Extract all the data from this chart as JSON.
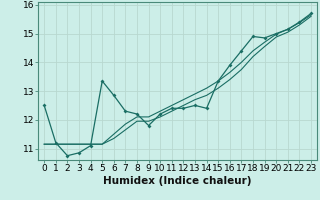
{
  "title": "",
  "xlabel": "Humidex (Indice chaleur)",
  "background_color": "#cceee8",
  "line_color": "#1a6e64",
  "grid_color": "#b8d8d0",
  "xlim": [
    -0.5,
    23.5
  ],
  "ylim": [
    10.6,
    16.1
  ],
  "yticks": [
    11,
    12,
    13,
    14,
    15,
    16
  ],
  "xticks": [
    0,
    1,
    2,
    3,
    4,
    5,
    6,
    7,
    8,
    9,
    10,
    11,
    12,
    13,
    14,
    15,
    16,
    17,
    18,
    19,
    20,
    21,
    22,
    23
  ],
  "x": [
    0,
    1,
    2,
    3,
    4,
    5,
    6,
    7,
    8,
    9,
    10,
    11,
    12,
    13,
    14,
    15,
    16,
    17,
    18,
    19,
    20,
    21,
    22,
    23
  ],
  "y_main": [
    12.5,
    11.2,
    10.75,
    10.85,
    11.1,
    13.35,
    12.85,
    12.3,
    12.2,
    11.8,
    12.2,
    12.4,
    12.4,
    12.5,
    12.4,
    13.35,
    13.9,
    14.4,
    14.9,
    14.85,
    15.0,
    15.15,
    15.4,
    15.7
  ],
  "y_line2": [
    11.15,
    11.15,
    11.15,
    11.15,
    11.15,
    11.15,
    11.5,
    11.85,
    12.1,
    12.1,
    12.3,
    12.5,
    12.7,
    12.9,
    13.1,
    13.35,
    13.65,
    14.0,
    14.4,
    14.7,
    14.98,
    15.15,
    15.38,
    15.65
  ],
  "y_line3": [
    11.15,
    11.15,
    11.15,
    11.15,
    11.15,
    11.15,
    11.35,
    11.65,
    11.95,
    11.95,
    12.1,
    12.3,
    12.5,
    12.7,
    12.85,
    13.1,
    13.4,
    13.75,
    14.2,
    14.55,
    14.88,
    15.05,
    15.3,
    15.6
  ],
  "tick_fontsize": 6.5,
  "xlabel_fontsize": 7.5
}
